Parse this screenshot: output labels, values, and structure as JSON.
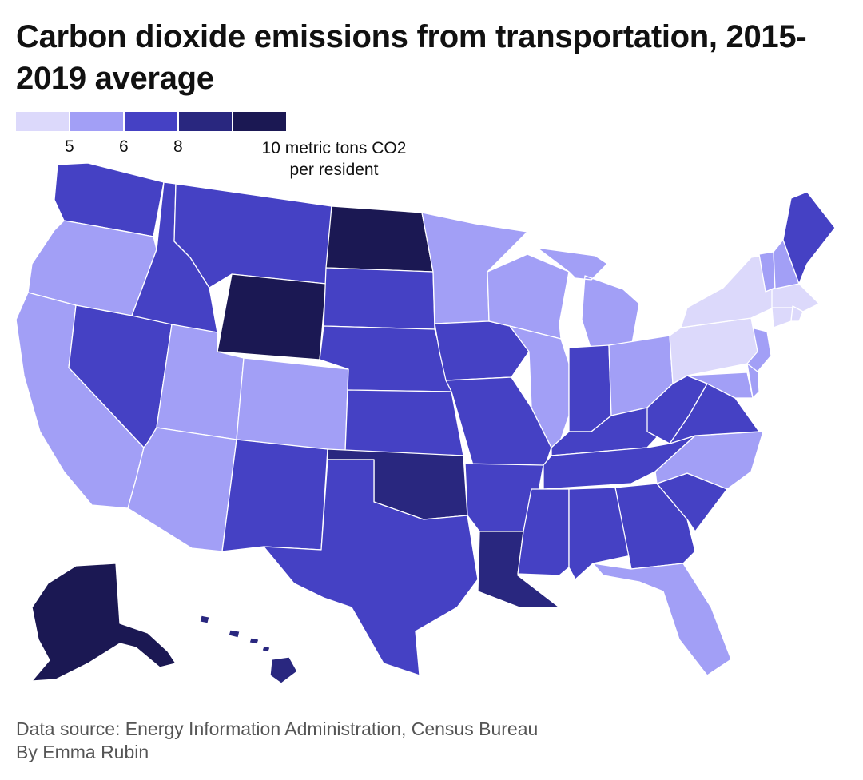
{
  "header": {
    "title": "Carbon dioxide emissions from transportation, 2015-2019 average"
  },
  "legend": {
    "colors": [
      "#dcd9fb",
      "#a29ff6",
      "#4541c4",
      "#29277f",
      "#1b1853"
    ],
    "ticks": [
      "5",
      "6",
      "8"
    ],
    "unit_lines": [
      "10 metric tons CO2",
      "per resident"
    ]
  },
  "map_data": {
    "classes": [
      {
        "color": "#dcd9fb",
        "states": [
          "New York",
          "Pennsylvania",
          "Massachusetts",
          "Connecticut",
          "Rhode Island"
        ]
      },
      {
        "color": "#a29ff6",
        "states": [
          "Oregon",
          "California",
          "Utah",
          "Arizona",
          "Colorado",
          "Minnesota",
          "Wisconsin",
          "Illinois",
          "Michigan",
          "Ohio",
          "Vermont",
          "New Hampshire",
          "New Jersey",
          "Maryland",
          "Delaware",
          "North Carolina",
          "Florida"
        ]
      },
      {
        "color": "#4541c4",
        "states": [
          "Washington",
          "Idaho",
          "Montana",
          "Nevada",
          "New Mexico",
          "Texas",
          "South Dakota",
          "Nebraska",
          "Kansas",
          "Iowa",
          "Missouri",
          "Arkansas",
          "Indiana",
          "Kentucky",
          "Tennessee",
          "Mississippi",
          "Alabama",
          "Georgia",
          "South Carolina",
          "Virginia",
          "West Virginia",
          "Maine"
        ]
      },
      {
        "color": "#29277f",
        "states": [
          "Oklahoma",
          "Louisiana",
          "Hawaii"
        ]
      },
      {
        "color": "#1b1853",
        "states": [
          "North Dakota",
          "Wyoming",
          "Alaska"
        ]
      }
    ]
  },
  "footer": {
    "source": "Data source: Energy Information Administration, Census Bureau",
    "credit": "By Emma Rubin"
  }
}
